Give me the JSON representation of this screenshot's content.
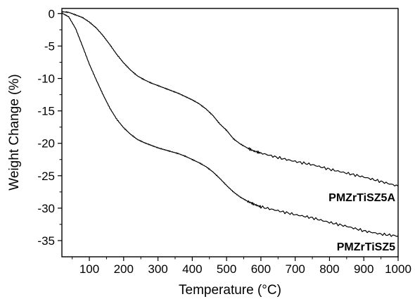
{
  "chart_data": {
    "type": "line",
    "title": "",
    "xlabel": "Temperature (°C)",
    "ylabel": "Weight Change (%)",
    "xlim": [
      20,
      1000
    ],
    "ylim": [
      -37.5,
      0.8
    ],
    "x_ticks": [
      100,
      200,
      300,
      400,
      500,
      600,
      700,
      800,
      900,
      1000
    ],
    "y_ticks": [
      0,
      -5,
      -10,
      -15,
      -20,
      -25,
      -30,
      -35
    ],
    "grid": false,
    "legend": "none",
    "series": [
      {
        "name": "PMZrTiSZ5A",
        "color": "#000000",
        "x": [
          20,
          40,
          60,
          80,
          100,
          120,
          140,
          160,
          180,
          200,
          220,
          240,
          260,
          280,
          300,
          320,
          340,
          360,
          380,
          400,
          420,
          440,
          460,
          480,
          500,
          520,
          540,
          560,
          580,
          600,
          650,
          700,
          750,
          800,
          850,
          900,
          950,
          1000
        ],
        "y": [
          0.3,
          0.2,
          -0.2,
          -0.6,
          -1.3,
          -2.2,
          -3.4,
          -4.8,
          -6.3,
          -7.6,
          -8.7,
          -9.6,
          -10.2,
          -10.7,
          -11.1,
          -11.5,
          -11.9,
          -12.3,
          -12.8,
          -13.3,
          -13.9,
          -14.7,
          -15.7,
          -17.0,
          -18.0,
          -19.3,
          -20.1,
          -20.7,
          -21.2,
          -21.5,
          -22.2,
          -22.8,
          -23.3,
          -24.0,
          -24.6,
          -25.2,
          -25.9,
          -26.6
        ]
      },
      {
        "name": "PMZrTiSZ5",
        "color": "#000000",
        "x": [
          20,
          40,
          60,
          80,
          100,
          120,
          140,
          160,
          180,
          200,
          220,
          240,
          260,
          280,
          300,
          320,
          340,
          360,
          380,
          400,
          420,
          440,
          460,
          480,
          500,
          520,
          540,
          560,
          580,
          600,
          650,
          700,
          750,
          800,
          850,
          900,
          950,
          1000
        ],
        "y": [
          0.1,
          -0.5,
          -2.3,
          -5.0,
          -7.8,
          -10.2,
          -12.5,
          -14.6,
          -16.3,
          -17.6,
          -18.6,
          -19.4,
          -19.9,
          -20.3,
          -20.7,
          -21.0,
          -21.3,
          -21.6,
          -22.0,
          -22.5,
          -23.0,
          -23.6,
          -24.4,
          -25.4,
          -26.5,
          -27.5,
          -28.3,
          -28.9,
          -29.4,
          -29.8,
          -30.4,
          -31.0,
          -31.5,
          -32.2,
          -32.8,
          -33.5,
          -34.0,
          -34.3
        ]
      }
    ]
  }
}
